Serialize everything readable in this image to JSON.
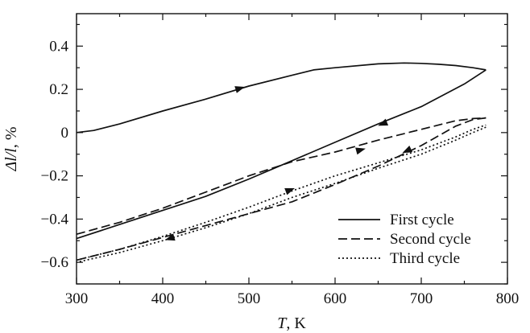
{
  "chart_data": {
    "type": "line",
    "title": "",
    "xlabel": {
      "italic": "T",
      "rest": ", K"
    },
    "ylabel": {
      "italic": "Δl/l",
      "rest": ", %"
    },
    "xlim": [
      300,
      800
    ],
    "ylim": [
      -0.7,
      0.55
    ],
    "xticks": [
      300,
      400,
      500,
      600,
      700,
      800
    ],
    "yticks": [
      -0.6,
      -0.4,
      -0.2,
      0,
      0.2,
      0.4
    ],
    "ytick_labels": [
      "−0.6",
      "−0.4",
      "−0.2",
      "0",
      "0.2",
      "0.4"
    ],
    "grid": false,
    "legend_position": "bottom-right",
    "series": [
      {
        "name": "First cycle",
        "style": "solid",
        "color": "#111111",
        "segments": [
          {
            "x": [
              300,
              320,
              350,
              400,
              450,
              500,
              550,
              575,
              600,
              650,
              680,
              700,
              720,
              740,
              760,
              775
            ],
            "y": [
              0.0,
              0.01,
              0.04,
              0.1,
              0.155,
              0.215,
              0.265,
              0.29,
              0.3,
              0.318,
              0.322,
              0.32,
              0.316,
              0.31,
              0.3,
              0.29
            ]
          },
          {
            "x": [
              775,
              750,
              700,
              650,
              600,
              550,
              500,
              450,
              400,
              350,
              300
            ],
            "y": [
              0.29,
              0.225,
              0.12,
              0.04,
              -0.045,
              -0.13,
              -0.215,
              -0.295,
              -0.36,
              -0.425,
              -0.49
            ]
          }
        ],
        "arrows": [
          {
            "x": 490,
            "y": 0.205,
            "dir": "forward",
            "segment": 0
          },
          {
            "x": 655,
            "y": 0.04,
            "dir": "backward",
            "segment": 1
          }
        ]
      },
      {
        "name": "Second cycle",
        "style": "dashed",
        "color": "#111111",
        "segments": [
          {
            "x": [
              300,
              350,
              400,
              450,
              500,
              550,
              600,
              650,
              700,
              740,
              760,
              775
            ],
            "y": [
              -0.47,
              -0.415,
              -0.35,
              -0.275,
              -0.2,
              -0.135,
              -0.09,
              -0.035,
              0.015,
              0.055,
              0.065,
              0.068
            ]
          },
          {
            "x": [
              775,
              760,
              740,
              700,
              650,
              600,
              550,
              500,
              450,
              400,
              350,
              300
            ],
            "y": [
              0.068,
              0.06,
              0.03,
              -0.06,
              -0.155,
              -0.24,
              -0.32,
              -0.375,
              -0.43,
              -0.485,
              -0.54,
              -0.59
            ]
          }
        ],
        "arrows": [
          {
            "x": 630,
            "y": -0.08,
            "dir": "forward",
            "segment": 0
          },
          {
            "x": 683,
            "y": -0.085,
            "dir": "backward",
            "segment": 1
          }
        ]
      },
      {
        "name": "Third cycle",
        "style": "dotted",
        "color": "#111111",
        "segments": [
          {
            "x": [
              300,
              350,
              400,
              450,
              500,
              550,
              600,
              650,
              700,
              740,
              760,
              775
            ],
            "y": [
              -0.59,
              -0.54,
              -0.48,
              -0.415,
              -0.345,
              -0.27,
              -0.2,
              -0.14,
              -0.08,
              -0.02,
              0.015,
              0.035
            ]
          },
          {
            "x": [
              775,
              760,
              740,
              700,
              650,
              600,
              550,
              500,
              450,
              400,
              350,
              300
            ],
            "y": [
              0.025,
              0.0,
              -0.035,
              -0.1,
              -0.165,
              -0.235,
              -0.3,
              -0.375,
              -0.44,
              -0.5,
              -0.555,
              -0.6
            ]
          }
        ],
        "arrows": [
          {
            "x": 548,
            "y": -0.265,
            "dir": "forward",
            "segment": 0
          },
          {
            "x": 408,
            "y": -0.49,
            "dir": "backward",
            "segment": 1
          }
        ]
      }
    ]
  }
}
